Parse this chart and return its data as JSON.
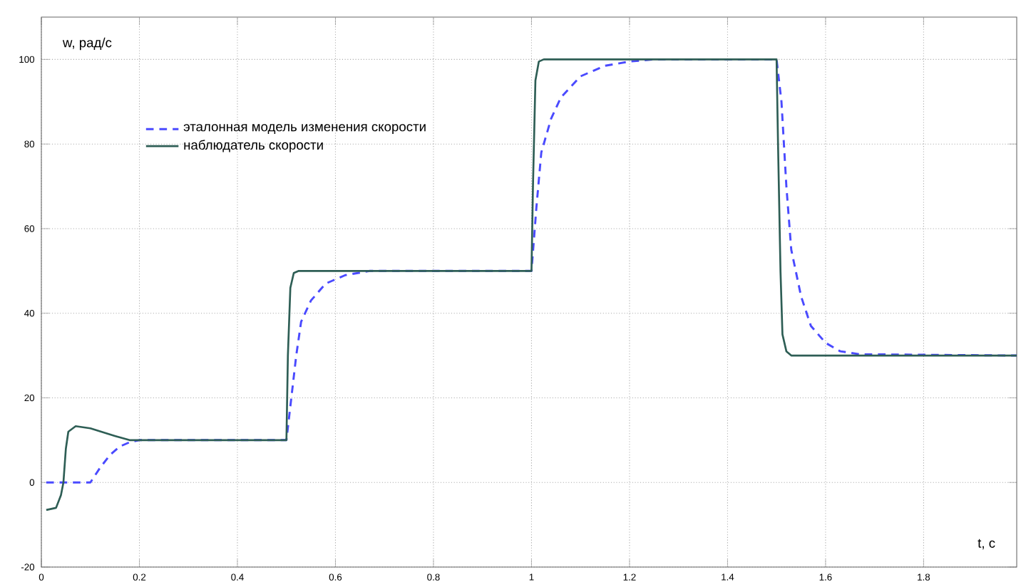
{
  "chart_data": {
    "type": "line",
    "xlabel": "t, с",
    "ylabel": "w, рад/с",
    "xlim": [
      0,
      1.99
    ],
    "ylim": [
      -20,
      110
    ],
    "xticks": [
      0,
      0.2,
      0.4,
      0.6,
      0.8,
      1,
      1.2,
      1.4,
      1.6,
      1.8
    ],
    "yticks": [
      -20,
      0,
      20,
      40,
      60,
      80,
      100
    ],
    "grid": true,
    "legend": "top left",
    "series": [
      {
        "name": "эталонная модель изменения скорости",
        "color": "#4a4aff",
        "line_style": "dashed",
        "x": [
          0.01,
          0.1,
          0.12,
          0.14,
          0.16,
          0.18,
          0.2,
          0.5,
          0.51,
          0.52,
          0.53,
          0.55,
          0.58,
          0.62,
          0.67,
          1.0,
          1.01,
          1.02,
          1.04,
          1.06,
          1.1,
          1.15,
          1.2,
          1.25,
          1.5,
          1.51,
          1.52,
          1.53,
          1.55,
          1.57,
          1.6,
          1.63,
          1.67,
          1.99
        ],
        "values": [
          0,
          0,
          3.5,
          6.5,
          8.5,
          9.5,
          10,
          10,
          20,
          30,
          38,
          43,
          47,
          49,
          50,
          50,
          65,
          78,
          86,
          91,
          96,
          98.5,
          99.5,
          100,
          100,
          90,
          70,
          55,
          44,
          37,
          33,
          31,
          30.3,
          30
        ]
      },
      {
        "name": "наблюдатель скорости",
        "color": "#2e5e55",
        "line_style": "solid",
        "x": [
          0.01,
          0.03,
          0.04,
          0.045,
          0.05,
          0.055,
          0.07,
          0.1,
          0.15,
          0.18,
          0.2,
          0.5,
          0.503,
          0.508,
          0.515,
          0.525,
          1.0,
          1.003,
          1.008,
          1.015,
          1.025,
          1.5,
          1.503,
          1.508,
          1.512,
          1.52,
          1.53,
          1.99
        ],
        "values": [
          -6.5,
          -6,
          -3,
          0,
          8,
          12,
          13.3,
          12.8,
          11,
          10,
          10,
          10,
          30,
          46,
          49.5,
          50,
          50,
          70,
          95,
          99.5,
          100,
          100,
          80,
          50,
          35,
          31,
          30,
          30
        ]
      }
    ]
  }
}
